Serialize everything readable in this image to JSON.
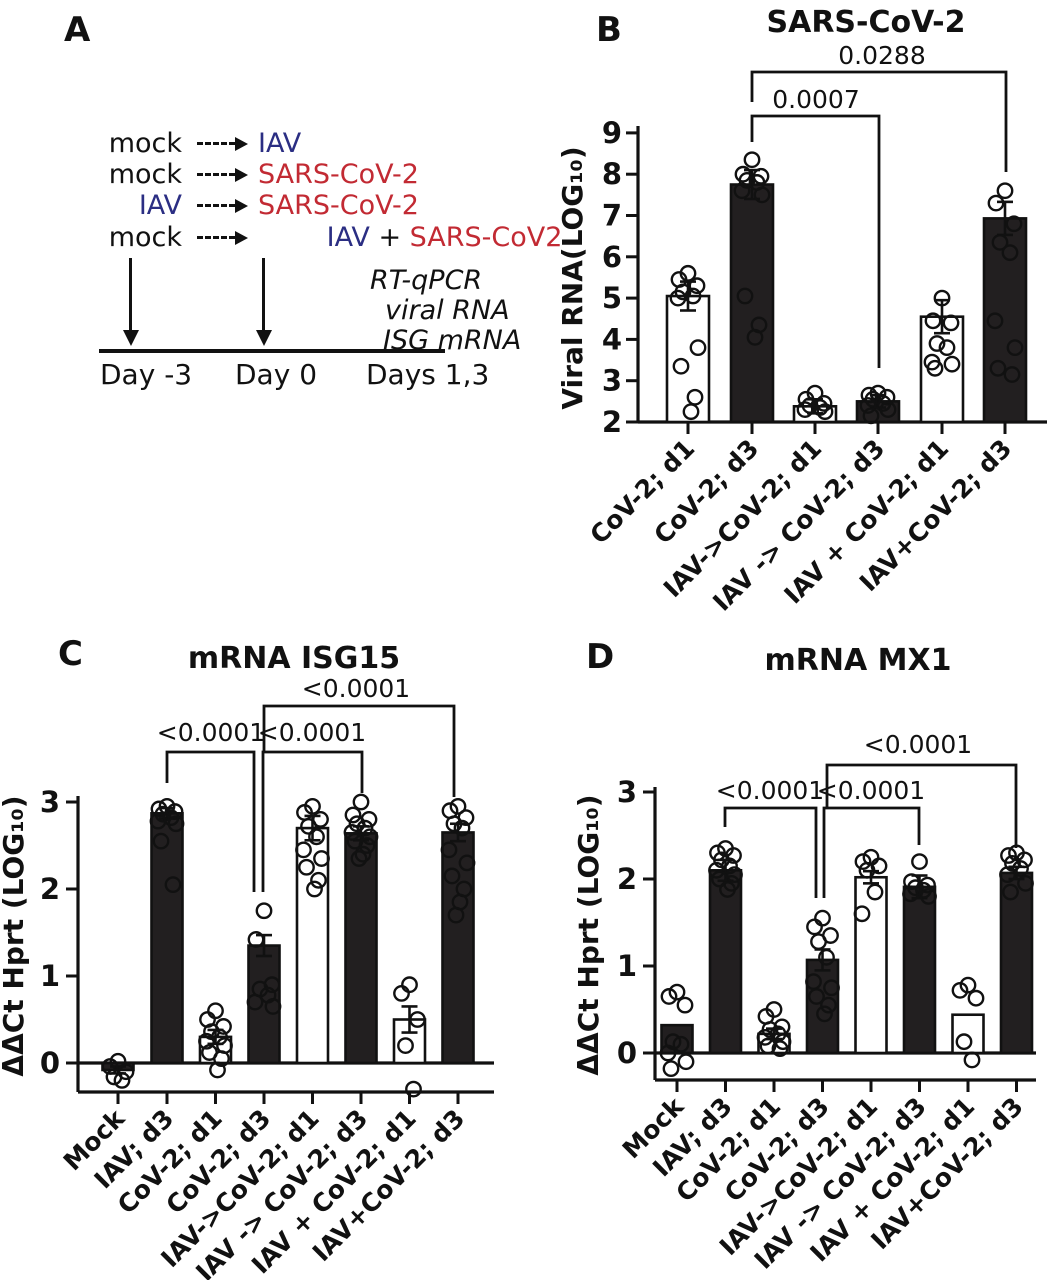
{
  "colors": {
    "ink": "#111111",
    "iav_blue": "#2b2e83",
    "cov_red": "#c22a33",
    "bar_dark": "#221f20"
  },
  "panel_a": {
    "label": "A",
    "rows": [
      {
        "left": "mock",
        "right": [
          {
            "text": "IAV"
          }
        ]
      },
      {
        "left": "mock",
        "right": [
          {
            "text": "SARS-CoV-2"
          }
        ]
      },
      {
        "left": "IAV",
        "right": [
          {
            "text": "SARS-CoV-2"
          }
        ]
      },
      {
        "left": "mock",
        "right": [
          {
            "text": "IAV"
          },
          {
            "text": " + "
          },
          {
            "text": "SARS-CoV2"
          }
        ]
      }
    ],
    "assay_lines": [
      "RT-qPCR",
      "viral RNA",
      "ISG mRNA"
    ],
    "timeline_labels": [
      "Day -3",
      "Day 0",
      "Days 1,3"
    ]
  },
  "chart_data": [
    {
      "panel_label": "B",
      "type": "bar",
      "title": "SARS-CoV-2",
      "xlabel": "",
      "ylabel": "Viral RNA(LOG₁₀)",
      "ylim": [
        2,
        9
      ],
      "yticks": [
        2,
        3,
        4,
        5,
        6,
        7,
        8,
        9
      ],
      "grid": false,
      "legend": "none",
      "categories": [
        "CoV-2; d1",
        "CoV-2; d3",
        "IAV->CoV-2; d1",
        "IAV -> CoV-2; d3",
        "IAV + CoV-2; d1",
        "IAV+CoV-2; d3"
      ],
      "values": [
        5.05,
        7.75,
        2.38,
        2.5,
        4.55,
        6.93
      ],
      "sems": [
        0.35,
        0.35,
        0.17,
        0.15,
        0.4,
        0.4
      ],
      "bar_fill": [
        "white",
        "black",
        "white",
        "black",
        "white",
        "black"
      ],
      "points": [
        [
          5.6,
          5.45,
          5.3,
          5.15,
          5.05,
          5.0,
          3.8,
          3.35,
          2.6,
          2.25
        ],
        [
          8.35,
          8.0,
          7.95,
          7.85,
          7.8,
          7.6,
          7.5,
          5.05,
          4.35,
          4.05
        ],
        [
          2.7,
          2.55,
          2.45,
          2.4,
          2.35,
          2.3,
          2.25
        ],
        [
          2.7,
          2.65,
          2.6,
          2.55,
          2.45,
          2.4,
          2.3,
          2.15
        ],
        [
          5.0,
          4.45,
          4.4,
          3.9,
          3.8,
          3.45,
          3.4,
          3.3
        ],
        [
          7.6,
          7.3,
          6.8,
          6.35,
          6.1,
          4.45,
          3.8,
          3.3,
          3.15
        ]
      ],
      "significance": [
        {
          "label": "0.0007",
          "from": "CoV-2; d3",
          "to": "IAV -> CoV-2; d3"
        },
        {
          "label": "0.0288",
          "from": "CoV-2; d3",
          "to": "IAV+CoV-2; d3"
        }
      ]
    },
    {
      "panel_label": "C",
      "type": "bar",
      "title": "mRNA ISG15",
      "xlabel": "",
      "ylabel": "ΔΔCt Hprt (LOG₁₀)",
      "ylim": [
        -0.35,
        3
      ],
      "yticks": [
        0,
        1,
        2,
        3
      ],
      "grid": false,
      "legend": "none",
      "categories": [
        "Mock",
        "IAV; d3",
        "CoV-2; d1",
        "CoV-2; d3",
        "IAV->CoV-2; d1",
        "IAV -> CoV-2; d3",
        "IAV + CoV-2; d1",
        "IAV+CoV-2; d3"
      ],
      "values": [
        -0.08,
        2.87,
        0.3,
        1.35,
        2.7,
        2.64,
        0.5,
        2.65
      ],
      "sems": [
        0.04,
        0.06,
        0.08,
        0.12,
        0.14,
        0.08,
        0.15,
        0.1
      ],
      "bar_fill": [
        "black",
        "black",
        "white",
        "black",
        "white",
        "black",
        "white",
        "black"
      ],
      "points": [
        [
          0.02,
          -0.04,
          -0.1,
          -0.16,
          -0.2
        ],
        [
          2.95,
          2.92,
          2.89,
          2.86,
          2.82,
          2.78,
          2.75,
          2.55,
          2.05
        ],
        [
          0.6,
          0.5,
          0.42,
          0.36,
          0.3,
          0.25,
          0.2,
          0.12,
          0.05,
          -0.08
        ],
        [
          1.75,
          1.42,
          0.9,
          0.85,
          0.78,
          0.7,
          0.65
        ],
        [
          2.95,
          2.88,
          2.8,
          2.72,
          2.6,
          2.45,
          2.35,
          2.25,
          2.1,
          2.0
        ],
        [
          3.0,
          2.85,
          2.8,
          2.75,
          2.7,
          2.65,
          2.6,
          2.55,
          2.5,
          2.4,
          2.35
        ],
        [
          0.9,
          0.8,
          0.5,
          0.2,
          -0.3
        ],
        [
          2.95,
          2.9,
          2.82,
          2.75,
          2.7,
          2.45,
          2.3,
          2.15,
          2.0,
          1.85,
          1.7
        ]
      ],
      "significance": [
        {
          "label": "<0.0001",
          "from": "IAV; d3",
          "to": "CoV-2; d3"
        },
        {
          "label": "<0.0001",
          "from": "CoV-2; d3",
          "to": "IAV -> CoV-2; d3"
        },
        {
          "label": "<0.0001",
          "from": "CoV-2; d3",
          "to": "IAV+CoV-2; d3"
        }
      ]
    },
    {
      "panel_label": "D",
      "type": "bar",
      "title": "mRNA MX1",
      "xlabel": "",
      "ylabel": "ΔΔCt Hprt (LOG₁₀)",
      "ylim": [
        -0.35,
        3
      ],
      "yticks": [
        0,
        1,
        2,
        3
      ],
      "grid": false,
      "legend": "none",
      "categories": [
        "Mock",
        "IAV; d3",
        "CoV-2; d1",
        "CoV-2; d3",
        "IAV->CoV-2; d1",
        "IAV -> CoV-2; d3",
        "IAV + CoV-2; d1",
        "IAV+CoV-2; d3"
      ],
      "values": [
        0.32,
        2.1,
        0.22,
        1.07,
        2.02,
        1.91,
        0.44,
        2.07
      ],
      "sems": [
        0,
        0.12,
        0.06,
        0.12,
        0.07,
        0.13,
        0,
        0.07
      ],
      "bar_fill": [
        "black",
        "black",
        "white",
        "black",
        "white",
        "black",
        "white",
        "black"
      ],
      "points": [
        [
          0.7,
          0.65,
          0.55,
          0.13,
          0.1,
          0.0,
          -0.1,
          -0.18
        ],
        [
          2.35,
          2.3,
          2.27,
          2.22,
          2.15,
          2.1,
          2.05,
          2.0,
          1.95,
          1.88
        ],
        [
          0.5,
          0.42,
          0.3,
          0.27,
          0.22,
          0.18,
          0.13,
          0.08,
          0.05
        ],
        [
          1.55,
          1.45,
          1.35,
          1.28,
          1.1,
          0.82,
          0.75,
          0.65,
          0.55,
          0.45
        ],
        [
          2.25,
          2.2,
          2.15,
          2.1,
          1.85,
          1.6
        ],
        [
          2.2,
          1.97,
          1.93,
          1.9,
          1.87,
          1.83,
          1.8
        ],
        [
          0.78,
          0.72,
          0.63,
          0.13,
          -0.08
        ],
        [
          2.3,
          2.27,
          2.22,
          2.18,
          2.12,
          2.05,
          1.95,
          1.85
        ]
      ],
      "significance": [
        {
          "label": "<0.0001",
          "from": "IAV; d3",
          "to": "CoV-2; d3"
        },
        {
          "label": "<0.0001",
          "from": "CoV-2; d3",
          "to": "IAV -> CoV-2; d3"
        },
        {
          "label": "<0.0001",
          "from": "CoV-2; d3",
          "to": "IAV+CoV-2; d3"
        }
      ]
    }
  ]
}
